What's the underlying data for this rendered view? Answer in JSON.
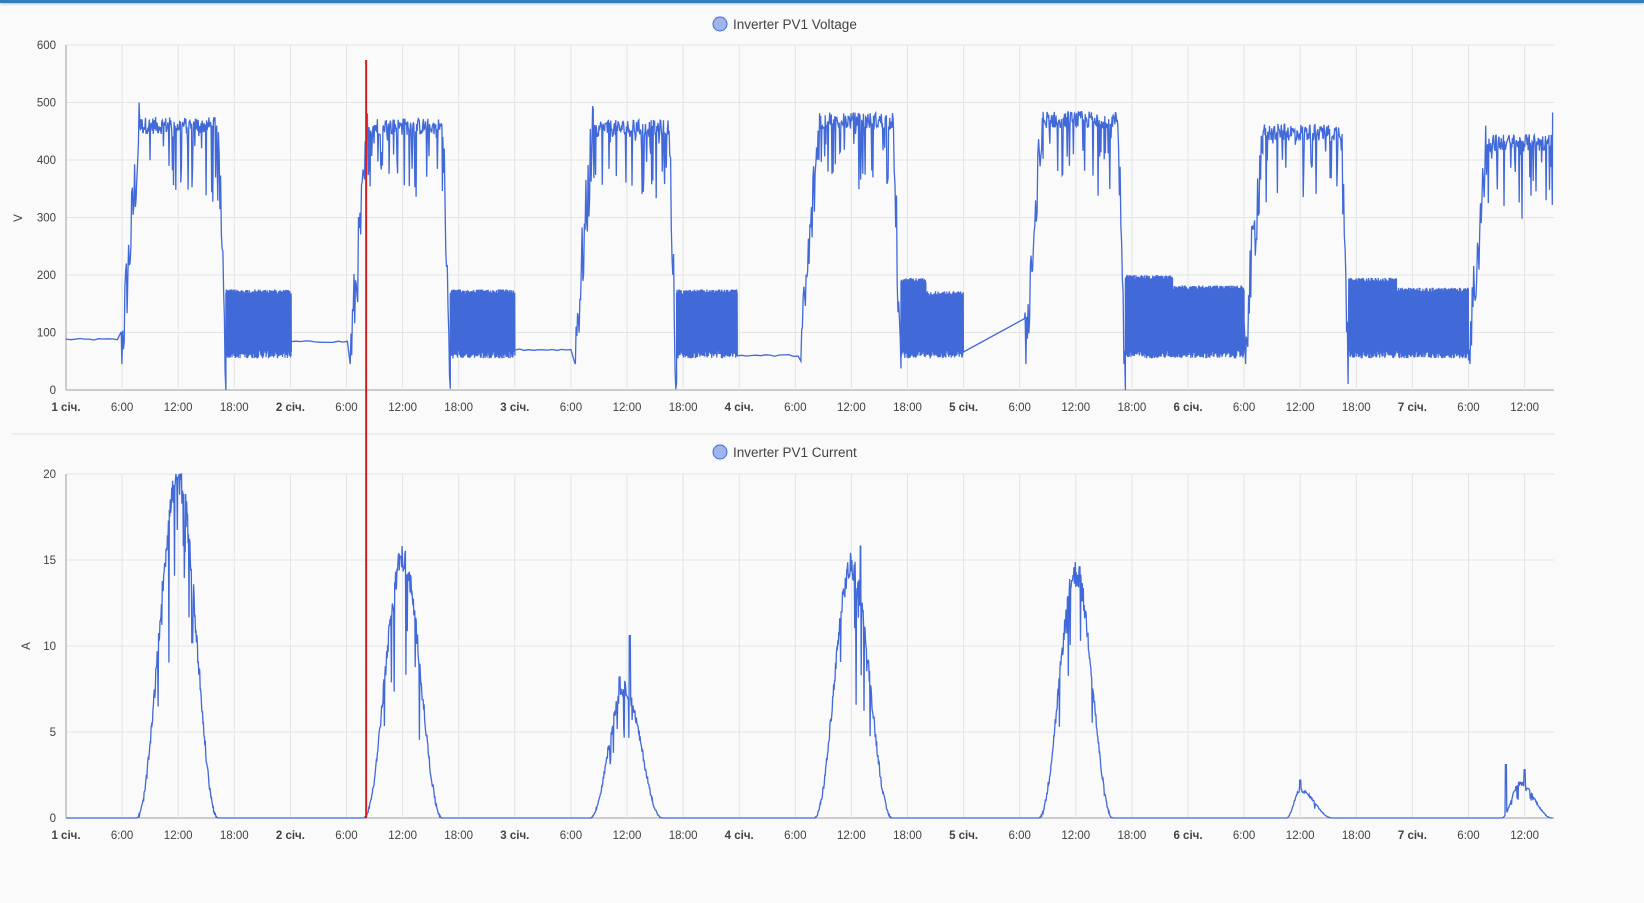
{
  "accent_color": "#4169d8",
  "cursor_color": "#d62020",
  "x_ticks": [
    {
      "label": "1 січ.",
      "bold": true,
      "h": 0
    },
    {
      "label": "6:00",
      "bold": false,
      "h": 6
    },
    {
      "label": "12:00",
      "bold": false,
      "h": 12
    },
    {
      "label": "18:00",
      "bold": false,
      "h": 18
    },
    {
      "label": "2 січ.",
      "bold": true,
      "h": 24
    },
    {
      "label": "6:00",
      "bold": false,
      "h": 30
    },
    {
      "label": "12:00",
      "bold": false,
      "h": 36
    },
    {
      "label": "18:00",
      "bold": false,
      "h": 42
    },
    {
      "label": "3 січ.",
      "bold": true,
      "h": 48
    },
    {
      "label": "6:00",
      "bold": false,
      "h": 54
    },
    {
      "label": "12:00",
      "bold": false,
      "h": 60
    },
    {
      "label": "18:00",
      "bold": false,
      "h": 66
    },
    {
      "label": "4 січ.",
      "bold": true,
      "h": 72
    },
    {
      "label": "6:00",
      "bold": false,
      "h": 78
    },
    {
      "label": "12:00",
      "bold": false,
      "h": 84
    },
    {
      "label": "18:00",
      "bold": false,
      "h": 90
    },
    {
      "label": "5 січ.",
      "bold": true,
      "h": 96
    },
    {
      "label": "6:00",
      "bold": false,
      "h": 102
    },
    {
      "label": "12:00",
      "bold": false,
      "h": 108
    },
    {
      "label": "18:00",
      "bold": false,
      "h": 114
    },
    {
      "label": "6 січ.",
      "bold": true,
      "h": 120
    },
    {
      "label": "6:00",
      "bold": false,
      "h": 126
    },
    {
      "label": "12:00",
      "bold": false,
      "h": 132
    },
    {
      "label": "18:00",
      "bold": false,
      "h": 138
    },
    {
      "label": "7 січ.",
      "bold": true,
      "h": 144
    },
    {
      "label": "6:00",
      "bold": false,
      "h": 150
    },
    {
      "label": "12:00",
      "bold": false,
      "h": 156
    }
  ],
  "cursor_hour": 32.1,
  "chart_data": [
    {
      "type": "line",
      "title": "",
      "series": [
        {
          "name": "Inverter PV1 Voltage",
          "color": "#4169d8"
        }
      ],
      "ylabel": "V",
      "ylim": [
        0,
        600
      ],
      "yticks": [
        0,
        100,
        200,
        300,
        400,
        500,
        600
      ],
      "xlim_hours": [
        0,
        159
      ],
      "grid": true,
      "legend": "top-center",
      "days": [
        {
          "rise": 5.9,
          "plateau": 460,
          "sunset": 16.3,
          "night": 175,
          "night2": 175,
          "night_end": 24.1,
          "base": 88
        },
        {
          "rise": 30.4,
          "plateau": 458,
          "sunset": 40.3,
          "night": 175,
          "night2": 175,
          "night_end": 48.0,
          "base": 84
        },
        {
          "rise": 54.4,
          "plateau": 455,
          "sunset": 64.5,
          "night": 175,
          "night2": 175,
          "night_end": 71.8,
          "base": 70
        },
        {
          "rise": 78.6,
          "plateau": 468,
          "sunset": 88.5,
          "night": 195,
          "night2": 172,
          "night_end": 96.0,
          "base": 60
        },
        {
          "rise": 102.5,
          "plateau": 470,
          "sunset": 112.5,
          "night": 200,
          "night2": 182,
          "night_end": 126.0,
          "base": 0
        },
        {
          "rise": 126.0,
          "plateau": 448,
          "sunset": 136.4,
          "night": 195,
          "night2": 178,
          "night_end": 150.0,
          "base": 0
        },
        {
          "rise": 150.0,
          "plateau": 430,
          "sunset": 159.0,
          "night": 0,
          "night2": 0,
          "night_end": 159.0,
          "base": 0
        }
      ]
    },
    {
      "type": "line",
      "title": "",
      "series": [
        {
          "name": "Inverter PV1 Current",
          "color": "#4169d8"
        }
      ],
      "ylabel": "A",
      "ylim": [
        0,
        20
      ],
      "yticks": [
        0,
        5,
        10,
        15,
        20
      ],
      "xlim_hours": [
        0,
        159
      ],
      "grid": true,
      "legend": "top-center",
      "peaks": [
        {
          "start": 7.5,
          "center": 12.0,
          "end": 16.3,
          "peak": 19.8,
          "spikes": [
            [
              12.0,
              19.8
            ],
            [
              12.7,
              15.5
            ],
            [
              13.5,
              10.2
            ]
          ]
        },
        {
          "start": 31.8,
          "center": 36.0,
          "end": 40.3,
          "peak": 15.1,
          "spikes": [
            [
              35.8,
              15.2
            ]
          ]
        },
        {
          "start": 56.0,
          "center": 59.7,
          "end": 63.8,
          "peak": 7.5,
          "spikes": [
            [
              60.3,
              10.6
            ],
            [
              59.2,
              8.2
            ]
          ]
        },
        {
          "start": 80.0,
          "center": 84.0,
          "end": 88.4,
          "peak": 14.6,
          "spikes": [
            [
              85.0,
              15.8
            ],
            [
              84.5,
              12.5
            ]
          ]
        },
        {
          "start": 104.0,
          "center": 108.0,
          "end": 112.0,
          "peak": 14.2,
          "spikes": [
            [
              108.4,
              14.6
            ],
            [
              107.6,
              13.8
            ]
          ]
        },
        {
          "start": 130.5,
          "center": 132.0,
          "end": 135.5,
          "peak": 1.6,
          "spikes": [
            [
              132.0,
              2.2
            ]
          ]
        },
        {
          "start": 153.5,
          "center": 155.5,
          "end": 159.0,
          "peak": 2.0,
          "spikes": [
            [
              154.0,
              3.1
            ],
            [
              156.0,
              2.8
            ]
          ]
        }
      ]
    }
  ]
}
